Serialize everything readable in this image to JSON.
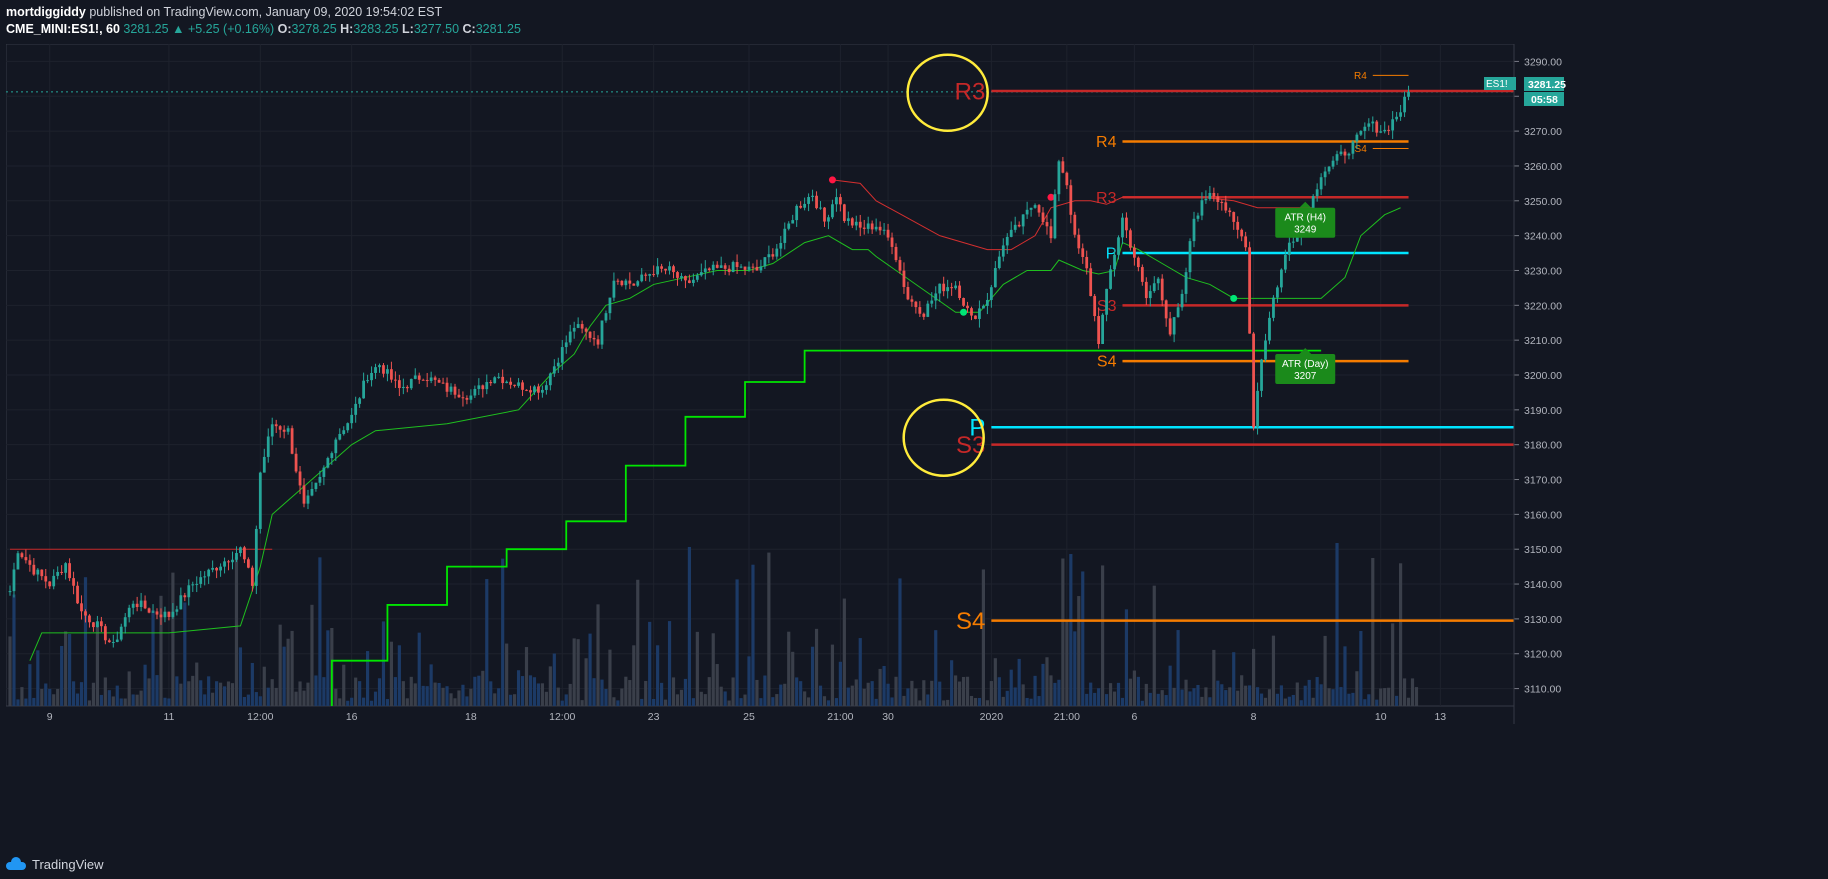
{
  "header": {
    "user": "mortdiggiddy",
    "published": " published on TradingView.com, January 09, 2020 19:54:02 EST",
    "symbol": "CME_MINI:ES1!, 60",
    "last": "3281.25",
    "change": "+5.25 (+0.16%)",
    "o_label": "O:",
    "o": "3278.25",
    "h_label": "H:",
    "h": "3283.25",
    "l_label": "L:",
    "l": "3277.50",
    "c_label": "C:",
    "c": "3281.25"
  },
  "price_tag": {
    "symbol": "ES1!",
    "value": "3281.25",
    "countdown": "05:58"
  },
  "footer": {
    "brand": "TradingView"
  },
  "colors": {
    "background": "#131722",
    "grid": "#1e222d",
    "up": "#26a69a",
    "down": "#ef5350",
    "red_level": "#c62828",
    "orange_level": "#f57c00",
    "cyan_level": "#00e5ff",
    "green_line": "#4caf50",
    "bright_green": "#00e676",
    "circle": "#ffeb3b",
    "vol_up": "#3a3f4a",
    "vol_down": "#1c3a66"
  },
  "chart_data": {
    "type": "candlestick",
    "ylim": [
      3105,
      3295
    ],
    "y_ticks": [
      3110,
      3120,
      3130,
      3140,
      3150,
      3160,
      3170,
      3180,
      3190,
      3200,
      3210,
      3220,
      3230,
      3240,
      3250,
      3260,
      3270,
      3280,
      3290
    ],
    "x_tick_labels": [
      {
        "label": "9",
        "bar": 10
      },
      {
        "label": "11",
        "bar": 40
      },
      {
        "label": "12:00",
        "bar": 63
      },
      {
        "label": "16",
        "bar": 86
      },
      {
        "label": "18",
        "bar": 116
      },
      {
        "label": "12:00",
        "bar": 139
      },
      {
        "label": "23",
        "bar": 162
      },
      {
        "label": "25",
        "bar": 186
      },
      {
        "label": "21:00",
        "bar": 209
      },
      {
        "label": "30",
        "bar": 221
      },
      {
        "label": "2020",
        "bar": 247
      },
      {
        "label": "21:00",
        "bar": 266
      },
      {
        "label": "6",
        "bar": 283
      },
      {
        "label": "8",
        "bar": 313
      },
      {
        "label": "10",
        "bar": 345
      },
      {
        "label": "13",
        "bar": 360
      }
    ],
    "total_bars": 372,
    "price_path": [
      [
        0,
        3138
      ],
      [
        2,
        3150
      ],
      [
        6,
        3144
      ],
      [
        10,
        3140
      ],
      [
        14,
        3146
      ],
      [
        18,
        3132
      ],
      [
        22,
        3128
      ],
      [
        26,
        3122
      ],
      [
        28,
        3128
      ],
      [
        31,
        3135
      ],
      [
        36,
        3132
      ],
      [
        40,
        3131
      ],
      [
        46,
        3140
      ],
      [
        52,
        3145
      ],
      [
        58,
        3150
      ],
      [
        61,
        3140
      ],
      [
        63,
        3172
      ],
      [
        66,
        3186
      ],
      [
        70,
        3184
      ],
      [
        74,
        3162
      ],
      [
        78,
        3170
      ],
      [
        82,
        3182
      ],
      [
        86,
        3188
      ],
      [
        90,
        3200
      ],
      [
        93,
        3203
      ],
      [
        98,
        3196
      ],
      [
        104,
        3200
      ],
      [
        110,
        3196
      ],
      [
        116,
        3194
      ],
      [
        122,
        3200
      ],
      [
        128,
        3197
      ],
      [
        134,
        3196
      ],
      [
        138,
        3205
      ],
      [
        142,
        3214
      ],
      [
        148,
        3210
      ],
      [
        152,
        3228
      ],
      [
        157,
        3226
      ],
      [
        162,
        3230
      ],
      [
        166,
        3230
      ],
      [
        170,
        3226
      ],
      [
        176,
        3230
      ],
      [
        182,
        3231
      ],
      [
        188,
        3230
      ],
      [
        194,
        3238
      ],
      [
        198,
        3248
      ],
      [
        202,
        3252
      ],
      [
        205,
        3244
      ],
      [
        208,
        3252
      ],
      [
        210,
        3245
      ],
      [
        214,
        3242
      ],
      [
        218,
        3243
      ],
      [
        222,
        3238
      ],
      [
        226,
        3222
      ],
      [
        230,
        3218
      ],
      [
        234,
        3225
      ],
      [
        238,
        3226
      ],
      [
        242,
        3216
      ],
      [
        246,
        3222
      ],
      [
        250,
        3238
      ],
      [
        254,
        3243
      ],
      [
        258,
        3250
      ],
      [
        260,
        3245
      ],
      [
        262,
        3239
      ],
      [
        264,
        3262
      ],
      [
        266,
        3255
      ],
      [
        268,
        3239
      ],
      [
        271,
        3230
      ],
      [
        274,
        3210
      ],
      [
        277,
        3230
      ],
      [
        280,
        3245
      ],
      [
        283,
        3234
      ],
      [
        286,
        3222
      ],
      [
        289,
        3228
      ],
      [
        292,
        3212
      ],
      [
        295,
        3222
      ],
      [
        298,
        3245
      ],
      [
        302,
        3253
      ],
      [
        305,
        3250
      ],
      [
        308,
        3243
      ],
      [
        311,
        3238
      ],
      [
        313,
        3186
      ],
      [
        315,
        3205
      ],
      [
        318,
        3222
      ],
      [
        322,
        3238
      ],
      [
        326,
        3244
      ],
      [
        330,
        3258
      ],
      [
        334,
        3262
      ],
      [
        338,
        3266
      ],
      [
        342,
        3272
      ],
      [
        346,
        3270
      ],
      [
        350,
        3276
      ],
      [
        352,
        3281
      ]
    ],
    "volume_up": [
      0.12,
      0.09,
      0.18,
      0.1,
      0.22,
      0.14,
      0.35,
      0.08
    ],
    "volume_down": [
      0.2,
      0.1,
      0.28,
      0.15,
      0.42,
      0.07,
      0.3,
      0.12
    ],
    "pivot_levels": [
      {
        "label": "R3",
        "value": 3281.5,
        "color": "red_level",
        "from_bar": 247,
        "label_size": "large"
      },
      {
        "label": "P",
        "value": 3185,
        "color": "cyan_level",
        "from_bar": 247,
        "label_size": "large"
      },
      {
        "label": "S3",
        "value": 3180,
        "color": "red_level",
        "from_bar": 247,
        "label_size": "large"
      },
      {
        "label": "S4",
        "value": 3129.5,
        "color": "orange_level",
        "from_bar": 247,
        "label_size": "large"
      },
      {
        "label": "R4",
        "value": 3267,
        "color": "orange_level",
        "from_bar": 280,
        "to_bar": 352,
        "label_size": "medium"
      },
      {
        "label": "R3",
        "value": 3251,
        "color": "red_level",
        "from_bar": 280,
        "to_bar": 352,
        "label_size": "medium"
      },
      {
        "label": "P",
        "value": 3235,
        "color": "cyan_level",
        "from_bar": 280,
        "to_bar": 352,
        "label_size": "medium"
      },
      {
        "label": "S3",
        "value": 3220,
        "color": "red_level",
        "from_bar": 280,
        "to_bar": 352,
        "label_size": "medium"
      },
      {
        "label": "S4",
        "value": 3204,
        "color": "orange_level",
        "from_bar": 280,
        "to_bar": 352,
        "label_size": "medium"
      },
      {
        "label": "R4",
        "value": 3286,
        "color": "orange_level",
        "from_bar": 343,
        "to_bar": 352,
        "label_size": "small"
      },
      {
        "label": "S4",
        "value": 3265,
        "color": "orange_level",
        "from_bar": 343,
        "to_bar": 352,
        "label_size": "small"
      },
      {
        "label": "",
        "value": 3150,
        "color": "red_level",
        "from_bar": 0,
        "to_bar": 66,
        "label_size": "none"
      }
    ],
    "atr_day_steps": [
      [
        81,
        3105
      ],
      [
        81,
        3118
      ],
      [
        95,
        3118
      ],
      [
        95,
        3134
      ],
      [
        110,
        3134
      ],
      [
        110,
        3145
      ],
      [
        125,
        3145
      ],
      [
        125,
        3150
      ],
      [
        140,
        3150
      ],
      [
        140,
        3158
      ],
      [
        155,
        3158
      ],
      [
        155,
        3174
      ],
      [
        170,
        3174
      ],
      [
        170,
        3188
      ],
      [
        185,
        3188
      ],
      [
        185,
        3198
      ],
      [
        200,
        3198
      ],
      [
        200,
        3207
      ],
      [
        330,
        3207
      ]
    ],
    "atr_h4_path": [
      [
        5,
        3118
      ],
      [
        8,
        3126
      ],
      [
        40,
        3126
      ],
      [
        58,
        3128
      ],
      [
        63,
        3145
      ],
      [
        66,
        3160
      ],
      [
        70,
        3164
      ],
      [
        78,
        3172
      ],
      [
        86,
        3180
      ],
      [
        92,
        3184
      ],
      [
        110,
        3186
      ],
      [
        128,
        3190
      ],
      [
        136,
        3200
      ],
      [
        142,
        3206
      ],
      [
        146,
        3214
      ],
      [
        150,
        3220
      ],
      [
        156,
        3222
      ],
      [
        162,
        3226
      ],
      [
        170,
        3228
      ],
      [
        178,
        3230
      ],
      [
        186,
        3230
      ],
      [
        192,
        3232
      ],
      [
        200,
        3238
      ],
      [
        206,
        3240
      ],
      [
        212,
        3236
      ],
      [
        216,
        3236
      ],
      [
        218,
        3234
      ],
      [
        238,
        3218
      ],
      [
        244,
        3218
      ],
      [
        250,
        3226
      ],
      [
        256,
        3230
      ],
      [
        262,
        3230
      ],
      [
        264,
        3233
      ],
      [
        266,
        3232
      ],
      [
        270,
        3230
      ],
      [
        274,
        3229
      ],
      [
        278,
        3230
      ],
      [
        280,
        3238
      ],
      [
        284,
        3236
      ],
      [
        290,
        3232
      ],
      [
        296,
        3228
      ],
      [
        302,
        3226
      ],
      [
        308,
        3222
      ],
      [
        330,
        3222
      ],
      [
        336,
        3228
      ],
      [
        340,
        3240
      ],
      [
        346,
        3246
      ],
      [
        350,
        3248
      ]
    ],
    "atr_h4_red_path": [
      [
        207,
        3256
      ],
      [
        214,
        3255
      ],
      [
        218,
        3250
      ],
      [
        226,
        3245
      ],
      [
        234,
        3240
      ],
      [
        240,
        3238
      ],
      [
        246,
        3236
      ],
      [
        252,
        3236
      ],
      [
        258,
        3240
      ],
      [
        262,
        3248
      ],
      [
        268,
        3250
      ],
      [
        272,
        3250
      ],
      [
        276,
        3249
      ],
      [
        280,
        3251
      ],
      [
        300,
        3251
      ],
      [
        308,
        3250
      ],
      [
        314,
        3248
      ],
      [
        328,
        3248
      ]
    ],
    "dots": [
      {
        "bar": 207,
        "value": 3256,
        "color": "#ff1744"
      },
      {
        "bar": 262,
        "value": 3251,
        "color": "#ff1744"
      },
      {
        "bar": 240,
        "value": 3218,
        "color": "#00e676"
      },
      {
        "bar": 308,
        "value": 3222,
        "color": "#00e676"
      }
    ],
    "atr_labels": [
      {
        "title": "ATR (H4)",
        "value": "3249",
        "bar": 326,
        "price": 3244
      },
      {
        "title": "ATR (Day)",
        "value": "3207",
        "bar": 326,
        "price": 3202
      }
    ],
    "circles": [
      {
        "bar": 236,
        "price": 3281
      },
      {
        "bar": 235,
        "price": 3182
      }
    ]
  }
}
